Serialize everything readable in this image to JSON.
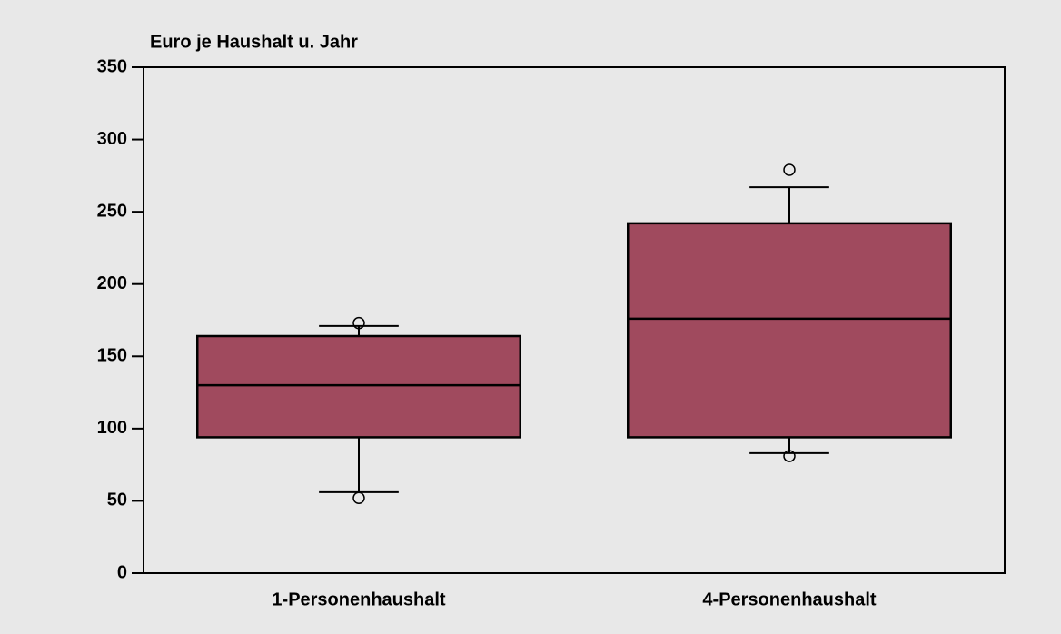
{
  "chart_data": {
    "type": "box",
    "y_label": "Euro je Haushalt u. Jahr",
    "categories": [
      "1-Personenhaushalt",
      "4-Personenhaushalt"
    ],
    "whisker_low": [
      56,
      83
    ],
    "q1": [
      94,
      94
    ],
    "median": [
      130,
      176
    ],
    "q3": [
      164,
      242
    ],
    "whisker_high": [
      171,
      267
    ],
    "outliers": [
      [
        52,
        173
      ],
      [
        81,
        279
      ]
    ],
    "color": "#a04a5e",
    "ylim": [
      0,
      350
    ],
    "yticks": [
      0,
      50,
      100,
      150,
      200,
      250,
      300,
      350
    ]
  }
}
